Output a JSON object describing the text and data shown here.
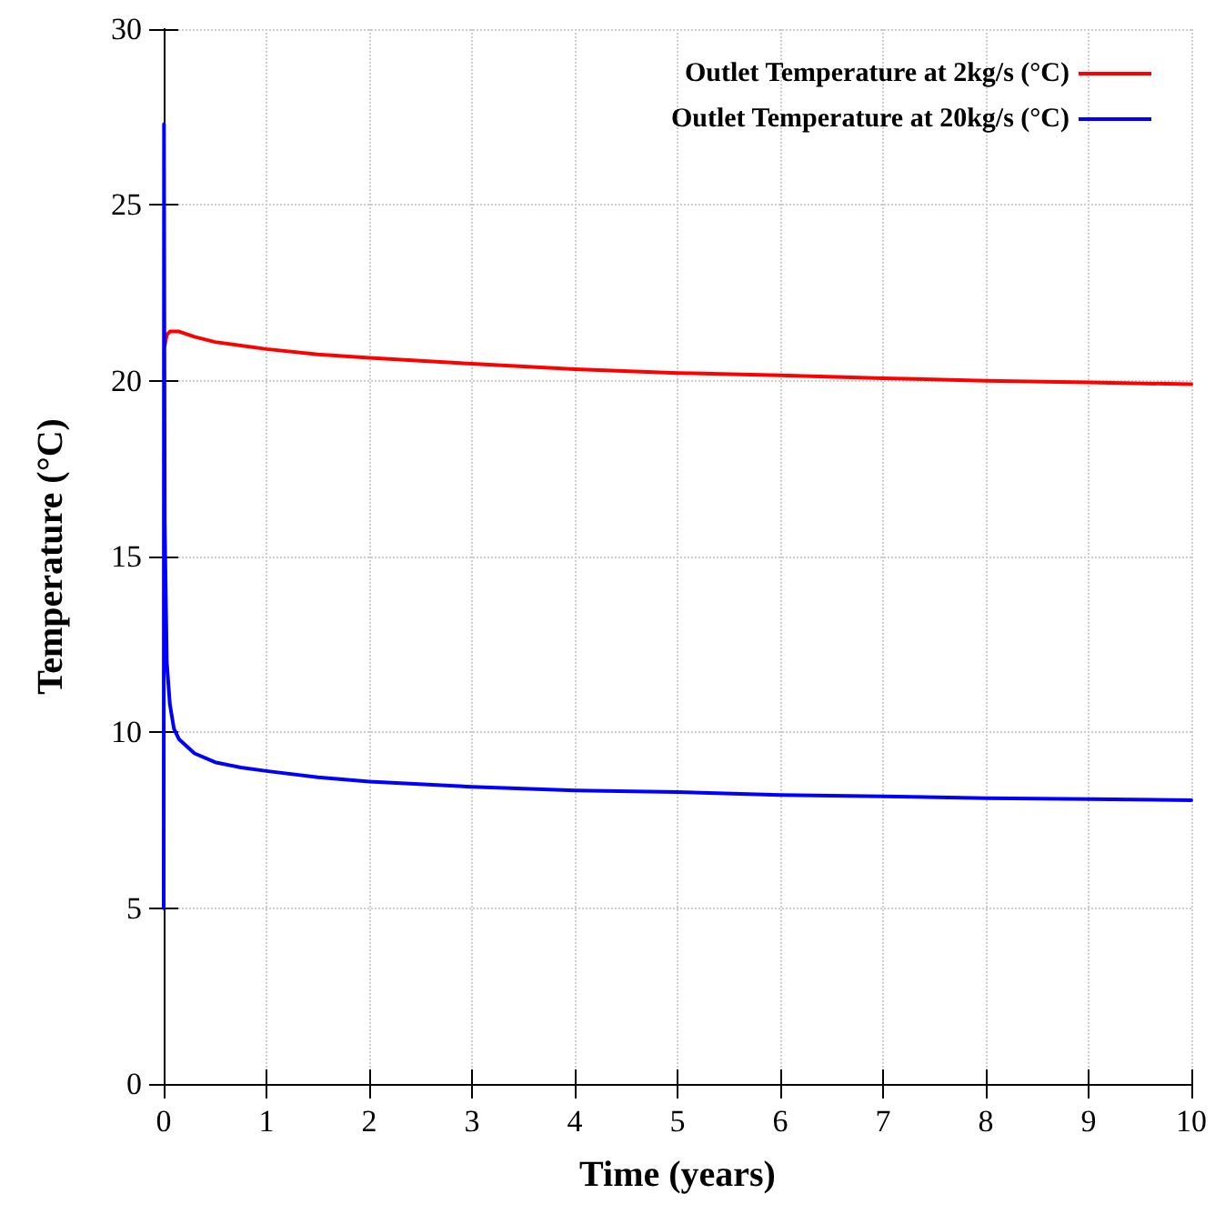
{
  "chart_data": {
    "type": "line",
    "xlabel": "Time (years)",
    "ylabel": "Temperature (°C)",
    "series": [
      {
        "name": "Outlet Temperature at 2kg/s (°C)",
        "color": "#ff0000",
        "x": [
          0.01,
          0.03,
          0.06,
          0.1,
          0.15,
          0.3,
          0.5,
          0.75,
          1,
          1.5,
          2,
          3,
          4,
          5,
          6,
          7,
          8,
          9,
          10
        ],
        "values": [
          21,
          21.3,
          21.4,
          21.4,
          21.4,
          21.25,
          21.1,
          21,
          20.9,
          20.75,
          20.65,
          20.48,
          20.33,
          20.22,
          20.15,
          20.07,
          20,
          19.95,
          19.9
        ]
      },
      {
        "name": "Outlet Temperature at 20kg/s (°C)",
        "color": "#0000ff",
        "x": [
          0,
          0.003,
          0.01,
          0.03,
          0.06,
          0.1,
          0.15,
          0.3,
          0.5,
          0.75,
          1,
          1.5,
          2,
          3,
          4,
          5,
          6,
          7,
          8,
          9,
          10
        ],
        "values": [
          5,
          27.3,
          16,
          12,
          10.8,
          10.1,
          9.8,
          9.4,
          9.15,
          9,
          8.9,
          8.72,
          8.6,
          8.45,
          8.35,
          8.3,
          8.22,
          8.18,
          8.13,
          8.1,
          8.07
        ]
      }
    ],
    "xlim": [
      0,
      10
    ],
    "xticks": [
      0,
      1,
      2,
      3,
      4,
      5,
      6,
      7,
      8,
      9,
      10
    ],
    "ylim": [
      0,
      30
    ],
    "yticks": [
      0,
      5,
      10,
      15,
      20,
      25,
      30
    ],
    "grid": true,
    "legend": "top right",
    "marker": "none",
    "line_style": "solid"
  }
}
